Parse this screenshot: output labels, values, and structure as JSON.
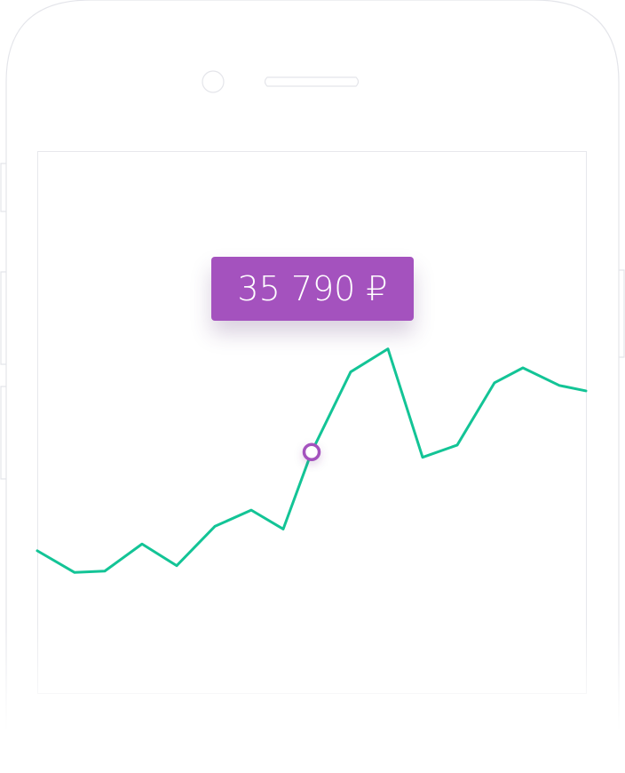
{
  "tooltip": {
    "value_text": "35 790 ₽"
  },
  "chart_data": {
    "type": "line",
    "x": [
      0,
      1,
      2,
      3,
      4,
      5,
      6,
      7,
      8,
      9,
      10,
      11,
      12,
      13,
      14,
      15
    ],
    "values": [
      28500,
      26900,
      27000,
      29000,
      27400,
      30300,
      31500,
      30100,
      35790,
      41700,
      43400,
      35400,
      36300,
      40900,
      42000,
      40700
    ],
    "selected_index": 8,
    "ylim": [
      18000,
      58000
    ],
    "xlabel": "",
    "ylabel": "",
    "title": "",
    "grid": false,
    "legend": "none",
    "colors": {
      "line": "#13c496",
      "marker": "#a452be",
      "cursor": "#c59ad6",
      "tooltip": "#a452be"
    }
  }
}
